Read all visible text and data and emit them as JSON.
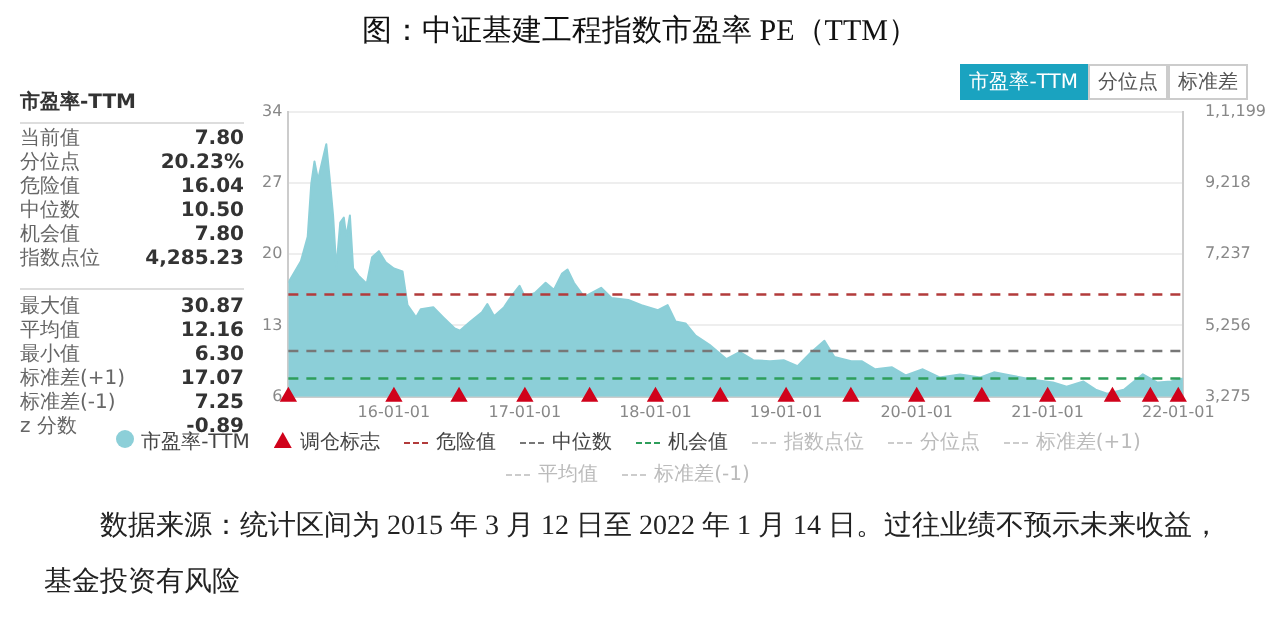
{
  "chart_data": [
    {
      "type": "other",
      "title": "市盈率-TTM",
      "annotations": [
        "当前值",
        "7.80",
        "分位点",
        "20.23%",
        "危险值",
        "16.04",
        "中位数",
        "10.50",
        "机会值",
        "7.80",
        "指数点位",
        "4,285.23",
        "最大值",
        "30.87",
        "平均值",
        "12.16",
        "最小值",
        "6.30",
        "标准差(+1)",
        "17.07",
        "标准差(-1)",
        "7.25",
        "z 分数",
        "-0.89"
      ]
    },
    {
      "type": "area",
      "title": "图：中证基建工程指数市盈率 PE（TTM）",
      "xlim": [
        "2015-03-12",
        "2022-01-14"
      ],
      "xticks": [
        {
          "value": "2016-01-01",
          "label": "16-01-01"
        },
        {
          "value": "2017-01-01",
          "label": "17-01-01"
        },
        {
          "value": "2018-01-01",
          "label": "18-01-01"
        },
        {
          "value": "2019-01-01",
          "label": "19-01-01"
        },
        {
          "value": "2020-01-01",
          "label": "20-01-01"
        },
        {
          "value": "2021-01-01",
          "label": "21-01-01"
        },
        {
          "value": "2022-01-01",
          "label": "22-01-01"
        }
      ],
      "ylim": [
        6,
        34
      ],
      "yticks": [
        6,
        13,
        20,
        27,
        34
      ],
      "y2lim": [
        3275,
        11199
      ],
      "y2ticks": [
        {
          "value": 3275,
          "label": "3,275"
        },
        {
          "value": 5256,
          "label": "5,256"
        },
        {
          "value": 7237,
          "label": "7,237"
        },
        {
          "value": 9218,
          "label": "9,218"
        },
        {
          "value": 11199,
          "label": "1,1,199"
        }
      ],
      "grid": "y",
      "legend": "bottom",
      "series": [
        {
          "name": "市盈率-TTM",
          "type": "area",
          "color": "#8ccfd8",
          "x": [
            "2015-03-12",
            "2015-04-16",
            "2015-05-05",
            "2015-05-15",
            "2015-05-24",
            "2015-06-03",
            "2015-06-12",
            "2015-06-26",
            "2015-07-05",
            "2015-07-15",
            "2015-07-24",
            "2015-08-04",
            "2015-08-14",
            "2015-08-21",
            "2015-08-31",
            "2015-09-09",
            "2015-09-24",
            "2015-10-17",
            "2015-11-01",
            "2015-11-20",
            "2015-12-09",
            "2016-01-01",
            "2016-01-25",
            "2016-02-08",
            "2016-03-03",
            "2016-03-16",
            "2016-04-20",
            "2016-05-18",
            "2016-06-19",
            "2016-07-04",
            "2016-08-02",
            "2016-09-03",
            "2016-09-18",
            "2016-10-07",
            "2016-11-04",
            "2016-11-23",
            "2016-12-17",
            "2017-01-01",
            "2017-01-29",
            "2017-02-28",
            "2017-03-23",
            "2017-04-15",
            "2017-04-30",
            "2017-05-18",
            "2017-06-16",
            "2017-08-02",
            "2017-08-31",
            "2017-10-17",
            "2017-11-23",
            "2018-01-08",
            "2018-02-04",
            "2018-02-26",
            "2018-03-26",
            "2018-04-23",
            "2018-06-01",
            "2018-07-18",
            "2018-08-25",
            "2018-10-01",
            "2018-11-17",
            "2018-12-25",
            "2019-02-02",
            "2019-03-10",
            "2019-04-18",
            "2019-05-16",
            "2019-07-02",
            "2019-07-31",
            "2019-09-07",
            "2019-10-24",
            "2019-12-01",
            "2020-01-18",
            "2020-03-05",
            "2020-05-01",
            "2020-06-27",
            "2020-08-04",
            "2020-09-20",
            "2020-11-16",
            "2021-01-16",
            "2021-02-23",
            "2021-04-11",
            "2021-05-15",
            "2021-06-16",
            "2021-08-02",
            "2021-09-24",
            "2021-11-04",
            "2021-12-12",
            "2022-01-14"
          ],
          "values": [
            17.2,
            19.3,
            21.7,
            26.9,
            29.1,
            27.3,
            28.7,
            30.8,
            27.6,
            23.8,
            18.6,
            23.1,
            23.6,
            21.7,
            23.8,
            18.6,
            17.9,
            17.1,
            19.7,
            20.3,
            19.2,
            18.6,
            18.3,
            15.0,
            13.8,
            14.6,
            14.8,
            13.8,
            12.7,
            12.5,
            13.4,
            14.3,
            15.1,
            13.9,
            14.8,
            15.8,
            16.9,
            15.8,
            16.2,
            17.2,
            16.5,
            18.1,
            18.5,
            17.2,
            15.8,
            16.7,
            15.7,
            15.5,
            15.0,
            14.5,
            15.0,
            13.4,
            13.2,
            12.0,
            11.1,
            9.7,
            10.4,
            9.6,
            9.5,
            9.6,
            9.0,
            10.3,
            11.5,
            9.9,
            9.5,
            9.5,
            8.7,
            8.9,
            8.1,
            8.7,
            7.9,
            8.2,
            7.9,
            8.4,
            8.1,
            7.7,
            7.4,
            7.0,
            7.5,
            6.7,
            6.3,
            6.7,
            8.2,
            7.4,
            7.5,
            7.8
          ]
        },
        {
          "name": "调仓标志",
          "type": "scatter",
          "color": "#d0021b",
          "marker": "triangle",
          "x": [
            "2015-03-12",
            "2016-01-01",
            "2016-07-01",
            "2017-01-01",
            "2017-07-01",
            "2018-01-01",
            "2018-07-01",
            "2019-01-01",
            "2019-07-01",
            "2020-01-01",
            "2020-07-01",
            "2021-01-01",
            "2021-07-01",
            "2021-10-15",
            "2022-01-01"
          ],
          "values": [
            6,
            6,
            6,
            6,
            6,
            6,
            6,
            6,
            6,
            6,
            6,
            6,
            6,
            6,
            6
          ]
        }
      ],
      "ref_lines": [
        {
          "axis": "y",
          "value": 16.04,
          "label": "危险值",
          "color": "#b23b3b",
          "line_style": "dashed"
        },
        {
          "axis": "y",
          "value": 10.5,
          "label": "中位数",
          "color": "#777777",
          "line_style": "dashed"
        },
        {
          "axis": "y",
          "value": 7.8,
          "label": "机会值",
          "color": "#2e9e5b",
          "line_style": "dashed"
        }
      ],
      "annotations": [
        "市盈率-TTM",
        "分位点",
        "标准差",
        "指数点位",
        "分位点",
        "标准差(+1)",
        "平均值",
        "标准差(-1)",
        "数据来源：统计区间为 2015 年 3 月 12 日至 2022 年 1 月 14 日。过往业绩不预示未来收益，基金投资有风险"
      ]
    }
  ]
}
